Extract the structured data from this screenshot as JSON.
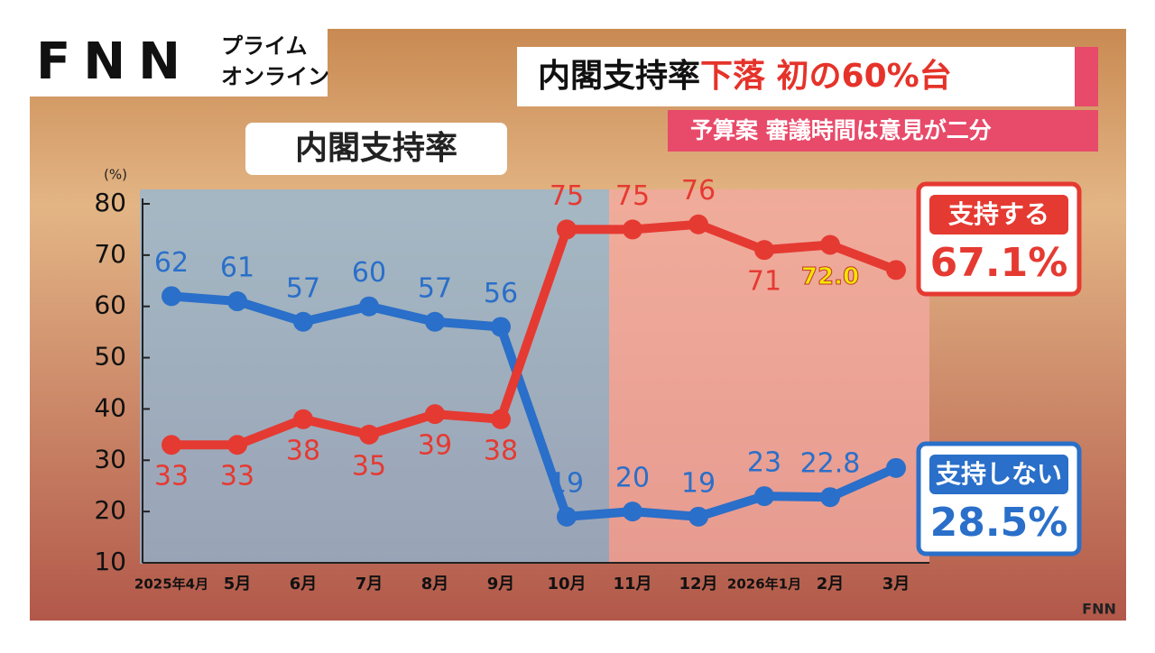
{
  "brand": {
    "logo": "FNN",
    "service": [
      "プライム",
      "オンライン"
    ]
  },
  "headline": {
    "main": "内閣支持率",
    "accent": "下落 初の60%台"
  },
  "subheadline": "予算案 審議時間は意見が二分",
  "watermark": "FNN",
  "chart_data": {
    "type": "line",
    "title": "内閣支持率",
    "y_label": "(%)",
    "categories": [
      "2025年4月",
      "5月",
      "6月",
      "7月",
      "8月",
      "9月",
      "10月",
      "11月",
      "12月",
      "2026年1月",
      "2月",
      "3月"
    ],
    "series": [
      {
        "name": "支持しない",
        "color": "#2a6fc9",
        "values": [
          62,
          61,
          57,
          60,
          57,
          56,
          19,
          20,
          19,
          23,
          22.8,
          28.5
        ],
        "value_labels": [
          "62",
          "61",
          "57",
          "60",
          "57",
          "56",
          "19",
          "20",
          "19",
          "23",
          "22.8",
          "28.5%"
        ]
      },
      {
        "name": "支持する",
        "color": "#e53a32",
        "values": [
          33,
          33,
          38,
          35,
          39,
          38,
          75,
          75,
          76,
          71,
          72,
          67.1
        ],
        "value_labels": [
          "33",
          "33",
          "38",
          "35",
          "39",
          "38",
          "75",
          "75",
          "76",
          "71",
          "72.0",
          "67.1%"
        ]
      }
    ],
    "ylim": [
      10,
      80
    ],
    "yticks": [
      10,
      20,
      30,
      40,
      50,
      60,
      70,
      80
    ],
    "grid": false
  }
}
